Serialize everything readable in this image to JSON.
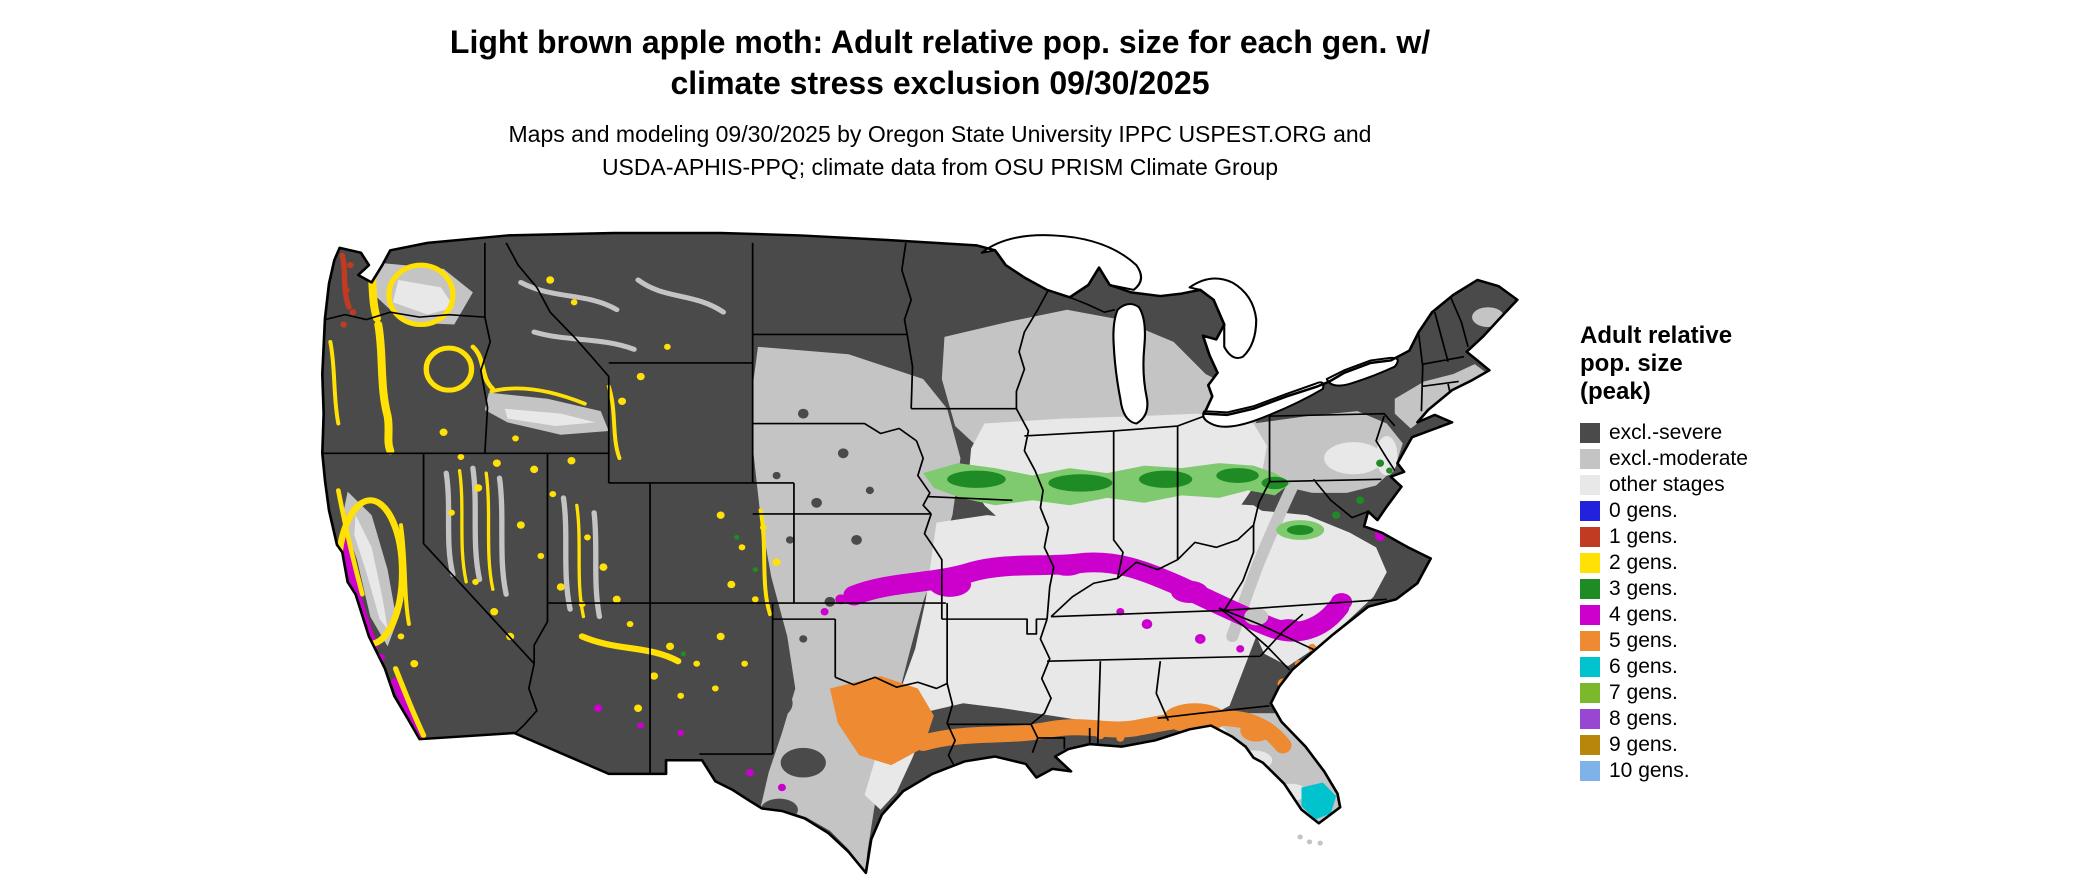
{
  "title": {
    "line1": "Light brown apple moth: Adult relative pop. size for each gen. w/",
    "line2": "climate stress exclusion 09/30/2025"
  },
  "subtitle": {
    "line1": "Maps and modeling 09/30/2025 by Oregon State University IPPC USPEST.ORG and",
    "line2": "USDA-APHIS-PPQ; climate data from OSU PRISM Climate Group"
  },
  "map": {
    "region": "Conterminous United States",
    "kind": "raster choropleth of insect generations with climate stress exclusion"
  },
  "colors": {
    "severe": "#4a4a4a",
    "moderate": "#c4c4c4",
    "other": "#e8e8e8",
    "gen0": "#2222dd",
    "gen1": "#c03b22",
    "gen2": "#ffe105",
    "gen3": "#1e8b25",
    "gen3_light": "#7fca6f",
    "gen4": "#cc00cc",
    "gen5": "#ee8a31",
    "gen6": "#00c3cd",
    "gen7": "#7cb82c",
    "gen8": "#9747d1",
    "gen9": "#b8860b",
    "gen10": "#7fb2e8",
    "outline": "#000000",
    "water": "#ffffff"
  },
  "legend": {
    "title_lines": [
      "Adult relative",
      "pop. size",
      "(peak)"
    ],
    "items": [
      {
        "label": "excl.-severe",
        "color_key": "severe"
      },
      {
        "label": "excl.-moderate",
        "color_key": "moderate"
      },
      {
        "label": "other stages",
        "color_key": "other"
      },
      {
        "label": "0 gens.",
        "color_key": "gen0"
      },
      {
        "label": "1 gens.",
        "color_key": "gen1"
      },
      {
        "label": "2 gens.",
        "color_key": "gen2"
      },
      {
        "label": "3 gens.",
        "color_key": "gen3"
      },
      {
        "label": "4 gens.",
        "color_key": "gen4"
      },
      {
        "label": "5 gens.",
        "color_key": "gen5"
      },
      {
        "label": "6 gens.",
        "color_key": "gen6"
      },
      {
        "label": "7 gens.",
        "color_key": "gen7"
      },
      {
        "label": "8 gens.",
        "color_key": "gen8"
      },
      {
        "label": "9 gens.",
        "color_key": "gen9"
      },
      {
        "label": "10 gens.",
        "color_key": "gen10"
      }
    ]
  }
}
